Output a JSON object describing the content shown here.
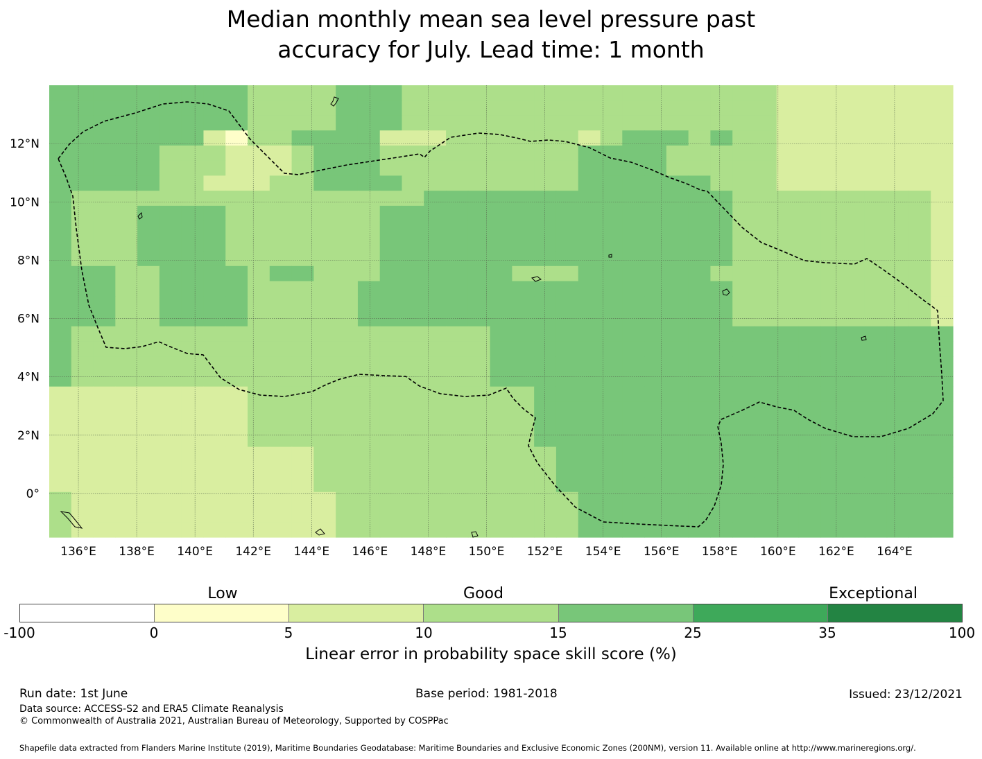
{
  "title": {
    "line1": "Median monthly mean sea level pressure past",
    "line2": "accuracy for July. Lead time: 1 month"
  },
  "map": {
    "lon_range": [
      135.0,
      166.0
    ],
    "lat_range": [
      -1.5,
      14.0
    ],
    "x_ticks": [
      "136°E",
      "138°E",
      "140°E",
      "142°E",
      "144°E",
      "146°E",
      "148°E",
      "150°E",
      "152°E",
      "154°E",
      "156°E",
      "158°E",
      "160°E",
      "162°E",
      "164°E"
    ],
    "y_ticks": [
      "12°N",
      "10°N",
      "8°N",
      "6°N",
      "4°N",
      "2°N",
      "0°"
    ],
    "boundary_style": "dashed",
    "palette": {
      "0_5": "#fefec9",
      "5_10": "#d9eea0",
      "10_15": "#addf8a",
      "15_25": "#78c679"
    },
    "grid_rows": [
      "33333333322223332222222222222222211111111",
      "33333333322223332222222222222222211111111",
      "33333333322223332222222222222222211111111",
      "33333331022333311122222212333232211111111",
      "33333222111233322222222233332222211111111",
      "33333222111233322222222233332222211111111",
      "33333221112233332222222233333322211111111",
      "32222222222222222333333333333332222222221",
      "32223333222222233333333333333332222222221",
      "32223333222222233333333333333332222222221",
      "32223333222222233333333333333332222222221",
      "32223333222222233333333333333332222222221",
      "33322333323322233333322233333322222222221",
      "33322333322222333333333333333332222222221",
      "33322333322222333333333333333332222222221",
      "33322333322222333333333333333332222222221",
      "32222222222222222222333333333333333333333",
      "32222222222222222222333333333333333333333",
      "32222222222222222222333333333333333333333",
      "32222222222222222222333333333333333333333",
      "11111111122222222222223333333333333333333",
      "11111111122222222222223333333333333333333",
      "11111111122222222222223333333333333333333",
      "11111111122222222222223333333333333333333",
      "11111111111122222222222333333333333333333",
      "11111111111122222222222333333333333333333",
      "11111111111122222222222333333333333333333",
      "21111111111112222222222233333333333333333",
      "21111111111112222222222233333333333333333",
      "21111111111112222222222233333333333333333"
    ]
  },
  "colorbar": {
    "categories": [
      "Low",
      "Good",
      "Exceptional"
    ],
    "ticks": [
      "-100",
      "0",
      "5",
      "10",
      "15",
      "25",
      "35",
      "100"
    ],
    "colors": [
      "#ffffff",
      "#fefec9",
      "#d9eea0",
      "#addf8a",
      "#78c679",
      "#3ea95a",
      "#238443"
    ],
    "label": "Linear error in probability space skill score (%)"
  },
  "footer": {
    "run_date": "Run date: 1st June",
    "base_period": "Base period: 1981-2018",
    "issued": "Issued: 23/12/2021",
    "data_source": "Data source: ACCESS-S2 and ERA5 Climate Reanalysis",
    "copyright": "© Commonwealth of Australia 2021, Australian Bureau of Meteorology, Supported by COSPPac",
    "shapefile": "Shapefile data extracted from Flanders Marine Institute (2019), Maritime Boundaries Geodatabase: Maritime Boundaries and Exclusive Economic Zones (200NM), version 11. Available online at http://www.marineregions.org/."
  }
}
